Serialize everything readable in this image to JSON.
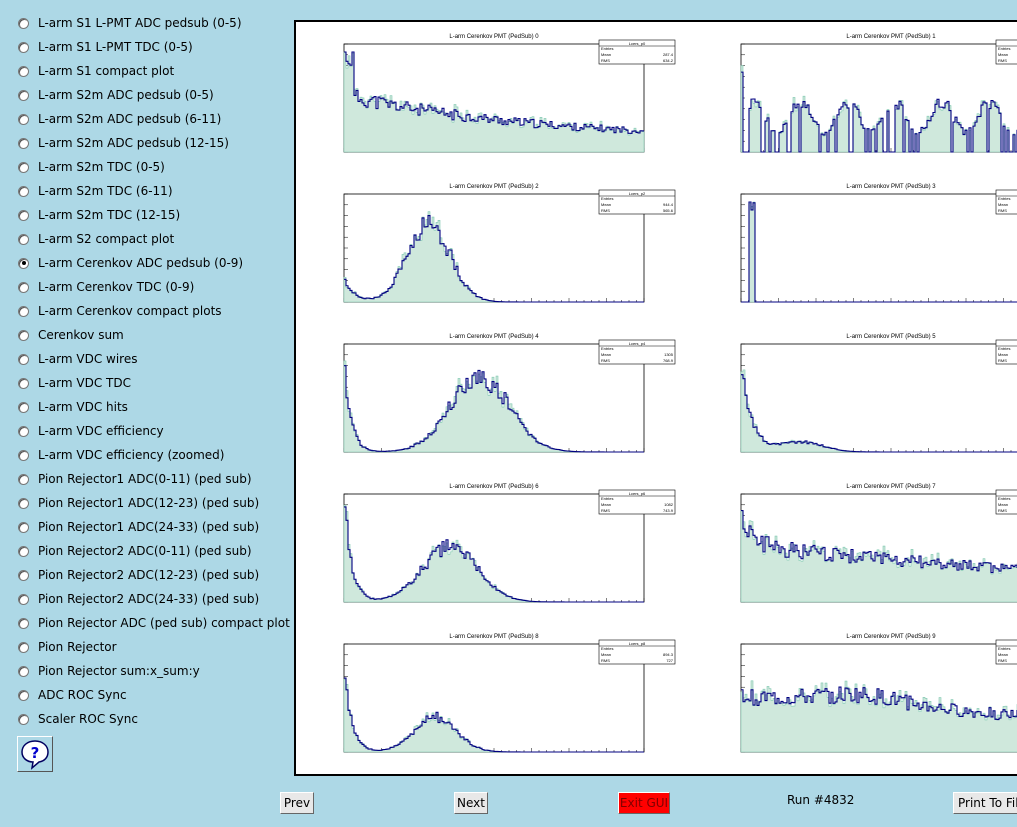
{
  "sidebar": {
    "items": [
      {
        "label": "L-arm S1 L-PMT ADC pedsub (0-5)",
        "selected": false
      },
      {
        "label": "L-arm S1 L-PMT TDC (0-5)",
        "selected": false
      },
      {
        "label": "L-arm S1 compact plot",
        "selected": false
      },
      {
        "label": "L-arm S2m ADC pedsub (0-5)",
        "selected": false
      },
      {
        "label": "L-arm S2m ADC pedsub (6-11)",
        "selected": false
      },
      {
        "label": "L-arm S2m ADC pedsub (12-15)",
        "selected": false
      },
      {
        "label": "L-arm S2m TDC (0-5)",
        "selected": false
      },
      {
        "label": "L-arm S2m TDC (6-11)",
        "selected": false
      },
      {
        "label": "L-arm S2m TDC (12-15)",
        "selected": false
      },
      {
        "label": "L-arm S2 compact plot",
        "selected": false
      },
      {
        "label": "L-arm Cerenkov ADC pedsub (0-9)",
        "selected": true
      },
      {
        "label": "L-arm Cerenkov TDC (0-9)",
        "selected": false
      },
      {
        "label": "L-arm Cerenkov compact plots",
        "selected": false
      },
      {
        "label": "Cerenkov sum",
        "selected": false
      },
      {
        "label": "L-arm VDC wires",
        "selected": false
      },
      {
        "label": "L-arm VDC TDC",
        "selected": false
      },
      {
        "label": "L-arm VDC hits",
        "selected": false
      },
      {
        "label": "L-arm VDC efficiency",
        "selected": false
      },
      {
        "label": "L-arm VDC efficiency (zoomed)",
        "selected": false
      },
      {
        "label": "Pion Rejector1 ADC(0-11) (ped sub)",
        "selected": false
      },
      {
        "label": "Pion Rejector1 ADC(12-23) (ped sub)",
        "selected": false
      },
      {
        "label": "Pion Rejector1 ADC(24-33) (ped sub)",
        "selected": false
      },
      {
        "label": "Pion Rejector2 ADC(0-11) (ped sub)",
        "selected": false
      },
      {
        "label": "Pion Rejector2 ADC(12-23) (ped sub)",
        "selected": false
      },
      {
        "label": "Pion Rejector2 ADC(24-33) (ped sub)",
        "selected": false
      },
      {
        "label": "Pion Rejector ADC (ped sub) compact plot",
        "selected": false
      },
      {
        "label": "Pion Rejector",
        "selected": false
      },
      {
        "label": "Pion Rejector sum:x_sum:y",
        "selected": false
      },
      {
        "label": "ADC ROC Sync",
        "selected": false
      },
      {
        "label": "Scaler ROC Sync",
        "selected": false
      }
    ],
    "help_icon": "question-mark-icon"
  },
  "plots": [
    {
      "title": "L-arm Cerenkov PMT (PedSub) 0",
      "stats_name": "Lcers_p0",
      "mean": "287.4",
      "rms": "634.2",
      "shape": "decay"
    },
    {
      "title": "L-arm Cerenkov PMT (PedSub) 1",
      "stats_name": "",
      "mean": "",
      "rms": "",
      "shape": "sparse"
    },
    {
      "title": "L-arm Cerenkov PMT (PedSub) 2",
      "stats_name": "Lcers_p2",
      "mean": "944.4",
      "rms": "565.6",
      "shape": "peak"
    },
    {
      "title": "L-arm Cerenkov PMT (PedSub) 3",
      "stats_name": "",
      "mean": "",
      "rms": "",
      "shape": "spike"
    },
    {
      "title": "L-arm Cerenkov PMT (PedSub) 4",
      "stats_name": "Lcers_p4",
      "mean": "1305",
      "rms": "768.9",
      "shape": "peak2"
    },
    {
      "title": "L-arm Cerenkov PMT (PedSub) 5",
      "stats_name": "",
      "mean": "",
      "rms": "",
      "shape": "decay2"
    },
    {
      "title": "L-arm Cerenkov PMT (PedSub) 6",
      "stats_name": "Lcers_p6",
      "mean": "1082",
      "rms": "743.9",
      "shape": "peak3"
    },
    {
      "title": "L-arm Cerenkov PMT (PedSub) 7",
      "stats_name": "",
      "mean": "",
      "rms": "",
      "shape": "flat"
    },
    {
      "title": "L-arm Cerenkov PMT (PedSub) 8",
      "stats_name": "Lcers_p8",
      "mean": "894.3",
      "rms": "727",
      "shape": "peak4"
    },
    {
      "title": "L-arm Cerenkov PMT (PedSub) 9",
      "stats_name": "",
      "mean": "",
      "rms": "",
      "shape": "flat2"
    }
  ],
  "stats_labels": {
    "entries": "Entries",
    "mean": "Mean",
    "rms": "RMS"
  },
  "buttons": {
    "prev": "Prev",
    "next": "Next",
    "exit": "Exit GUI",
    "print": "Print To File"
  },
  "run_label": "Run #4832",
  "colors": {
    "background": "#add8e6",
    "hist_line": "#000080",
    "hist_fill": "#7fc8b0",
    "exit": "#ff0000"
  }
}
